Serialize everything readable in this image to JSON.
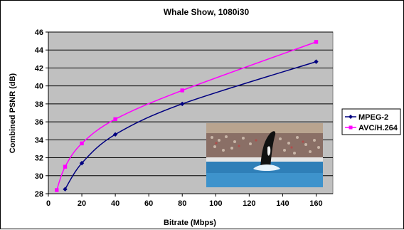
{
  "chart_data": {
    "type": "line",
    "title": "Whale Show, 1080i30",
    "xlabel": "Bitrate (Mbps)",
    "ylabel": "Combined PSNR (dB)",
    "xlim": [
      0,
      170
    ],
    "ylim": [
      28,
      46
    ],
    "x_ticks": [
      0,
      20,
      40,
      60,
      80,
      100,
      120,
      140,
      160
    ],
    "y_ticks": [
      28,
      30,
      32,
      34,
      36,
      38,
      40,
      42,
      44,
      46
    ],
    "grid": true,
    "legend_position": "right",
    "series": [
      {
        "name": "MPEG-2",
        "color": "#000080",
        "marker": "diamond",
        "x": [
          10,
          20,
          40,
          80,
          160
        ],
        "y": [
          28.5,
          31.4,
          34.6,
          38.0,
          42.7
        ]
      },
      {
        "name": "AVC/H.264",
        "color": "#ff00ff",
        "marker": "square",
        "x": [
          5,
          10,
          20,
          40,
          80,
          160
        ],
        "y": [
          28.4,
          31.0,
          33.6,
          36.3,
          39.5,
          44.9
        ]
      }
    ],
    "inset_image": "whale-show-photo"
  }
}
